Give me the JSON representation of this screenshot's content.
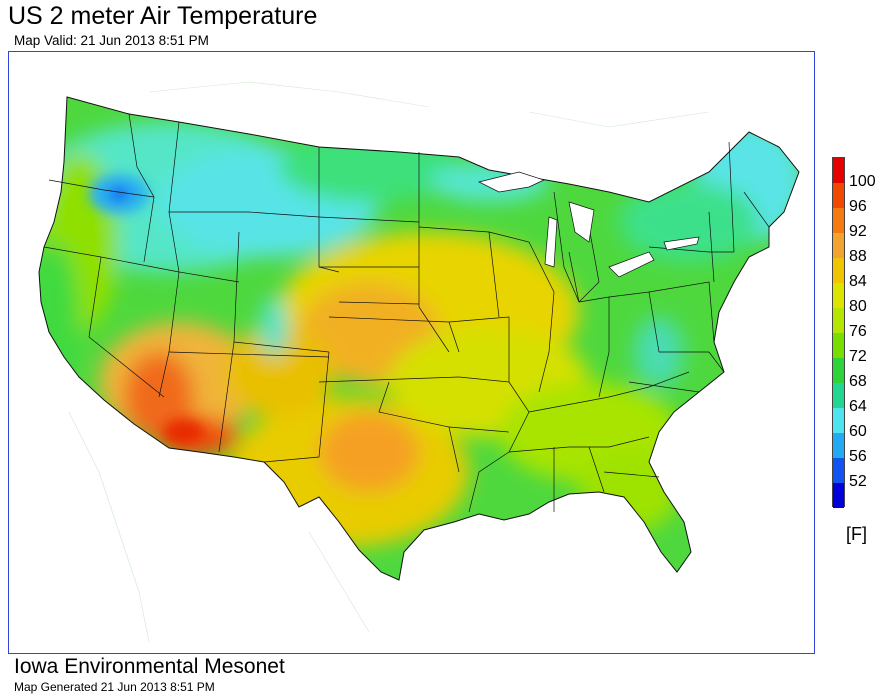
{
  "title": "US 2 meter Air Temperature",
  "subtitle": "Map Valid: 21 Jun 2013 8:51 PM",
  "legend": {
    "units": "[F]",
    "labels": [
      "100",
      "96",
      "92",
      "88",
      "84",
      "80",
      "76",
      "72",
      "68",
      "64",
      "60",
      "56",
      "52"
    ],
    "colors": [
      "#e60000",
      "#f04a00",
      "#f57a10",
      "#f3a430",
      "#efc400",
      "#dde400",
      "#b4e600",
      "#78dd00",
      "#2ed43a",
      "#22d890",
      "#4ee4f0",
      "#22aaf2",
      "#1155f0",
      "#0000d8"
    ]
  },
  "footer": {
    "org": "Iowa Environmental Mesonet",
    "generated": "Map Generated 21 Jun 2013 8:51 PM"
  }
}
